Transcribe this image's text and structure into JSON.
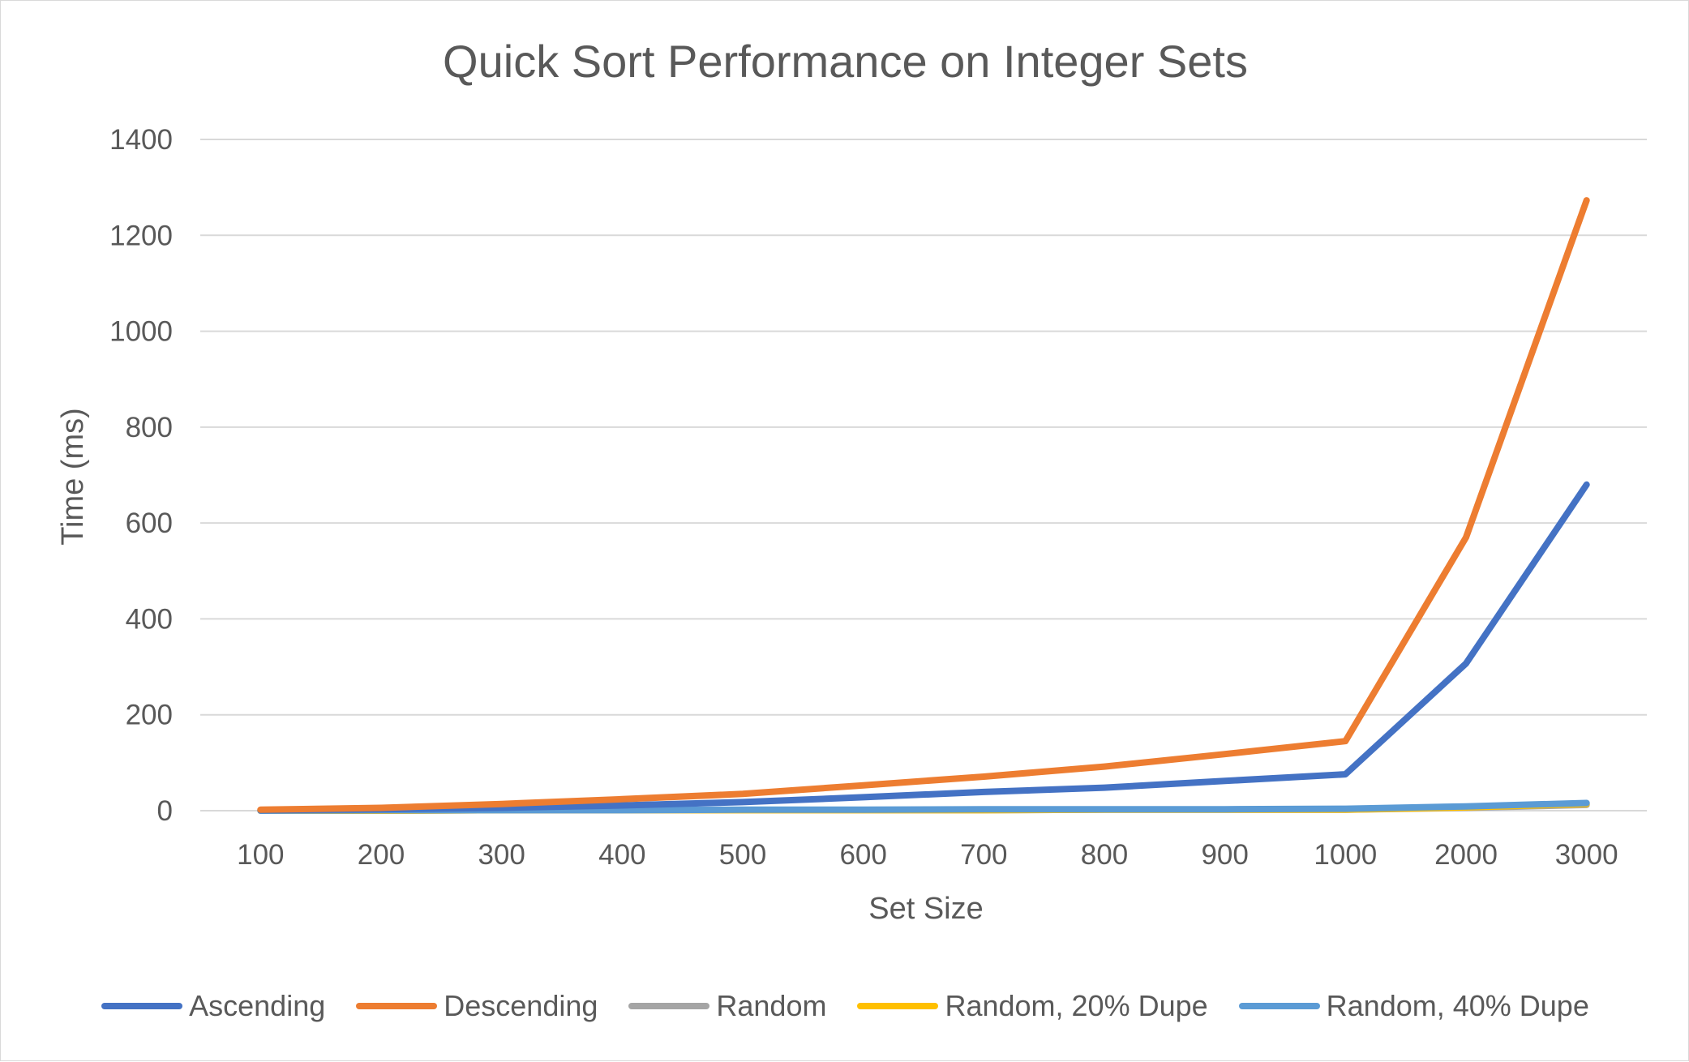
{
  "chart_data": {
    "type": "line",
    "title": "Quick Sort Performance on Integer Sets",
    "xlabel": "Set Size",
    "ylabel": "Time (ms)",
    "categories": [
      "100",
      "200",
      "300",
      "400",
      "500",
      "600",
      "700",
      "800",
      "900",
      "1000",
      "2000",
      "3000"
    ],
    "ylim": [
      0,
      1400
    ],
    "yticks": [
      "0",
      "200",
      "400",
      "600",
      "800",
      "1000",
      "1200",
      "1400"
    ],
    "grid": true,
    "legend_position": "bottom",
    "series": [
      {
        "name": "Ascending",
        "color": "#4472c4",
        "values": [
          1,
          3,
          6,
          11,
          18,
          28,
          39,
          48,
          62,
          76,
          307,
          680
        ]
      },
      {
        "name": "Descending",
        "color": "#ed7d31",
        "values": [
          2,
          6,
          14,
          24,
          35,
          53,
          71,
          92,
          118,
          145,
          570,
          1273
        ]
      },
      {
        "name": "Random",
        "color": "#a5a5a5",
        "values": [
          0,
          0,
          1,
          1,
          1,
          1,
          1,
          2,
          2,
          2,
          6,
          12
        ]
      },
      {
        "name": "Random, 20% Dupe",
        "color": "#ffc000",
        "values": [
          0,
          0,
          1,
          1,
          1,
          1,
          1,
          2,
          2,
          2,
          7,
          14
        ]
      },
      {
        "name": "Random, 40% Dupe",
        "color": "#5b9bd5",
        "values": [
          0,
          1,
          1,
          1,
          2,
          2,
          3,
          3,
          3,
          4,
          9,
          16
        ]
      }
    ]
  }
}
